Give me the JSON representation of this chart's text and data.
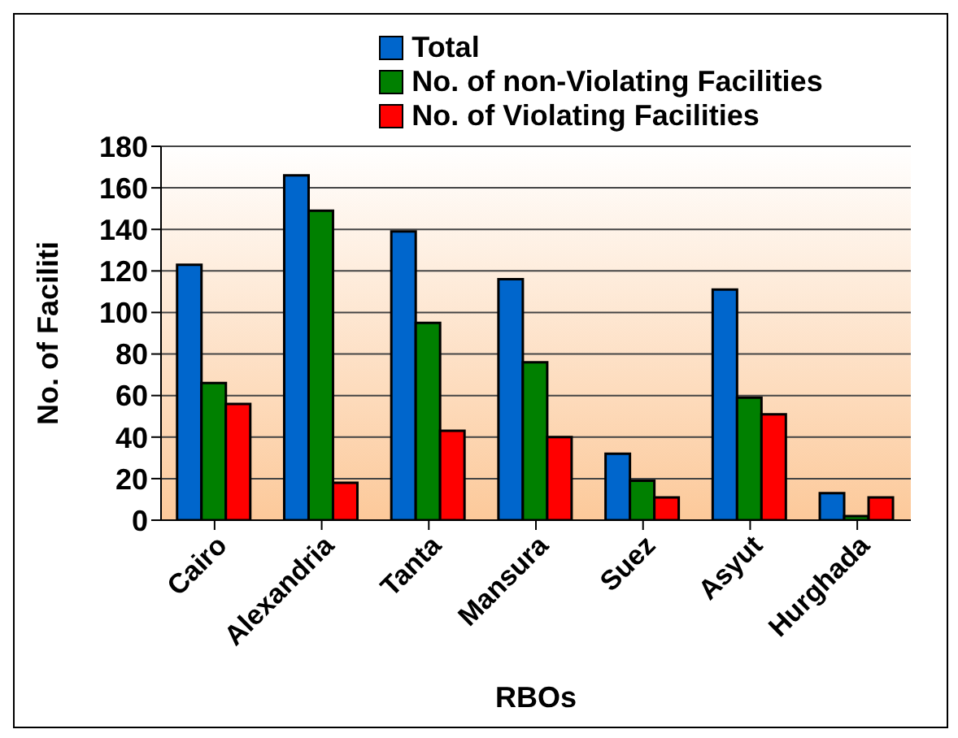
{
  "chart_data": {
    "type": "bar",
    "xlabel": "RBOs",
    "ylabel": "No. of Faciliti",
    "categories": [
      "Cairo",
      "Alexandria",
      "Tanta",
      "Mansura",
      "Suez",
      "Asyut",
      "Hurghada"
    ],
    "series": [
      {
        "name": "Total",
        "color": "#0066cc",
        "values": [
          123,
          166,
          139,
          116,
          32,
          111,
          13
        ]
      },
      {
        "name": "No. of non-Violating Facilities",
        "color": "#008000",
        "values": [
          66,
          149,
          95,
          76,
          19,
          59,
          2
        ]
      },
      {
        "name": "No. of Violating Facilities",
        "color": "#ff0000",
        "values": [
          56,
          18,
          43,
          40,
          11,
          51,
          11
        ]
      }
    ],
    "ylim": [
      0,
      180
    ],
    "yticks": [
      0,
      20,
      40,
      60,
      80,
      100,
      120,
      140,
      160,
      180
    ],
    "grid": "y",
    "legend": "top"
  }
}
